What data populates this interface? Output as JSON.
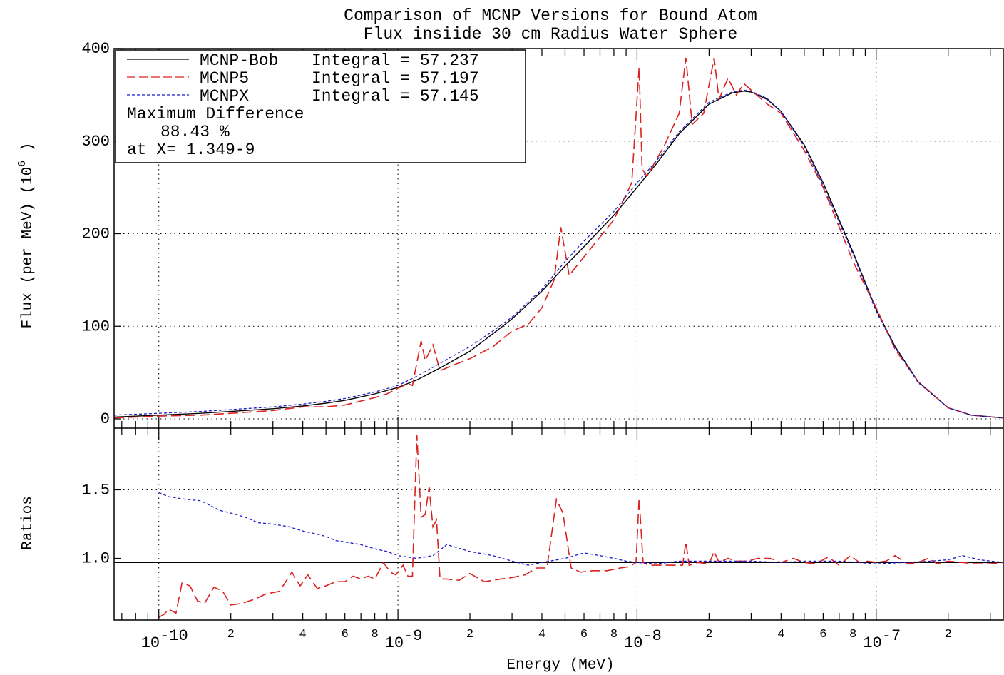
{
  "title_line1": "Comparison of MCNP Versions for Bound Atom",
  "title_line2": "Flux insiide 30 cm Radius Water Sphere",
  "xlabel": "Energy (MeV)",
  "ylabel_top": "Flux (per MeV) (10",
  "ylabel_top_exp": "6",
  "ylabel_top_close": " )",
  "ylabel_bottom": "Ratios",
  "x_decade_labels": [
    {
      "base": "10",
      "exp": "-10"
    },
    {
      "base": "10",
      "exp": "-9"
    },
    {
      "base": "10",
      "exp": "-8"
    },
    {
      "base": "10",
      "exp": "-7"
    }
  ],
  "x_minor_labels": [
    "2",
    "4",
    "6",
    "8"
  ],
  "y_top_ticks": [
    "0",
    "100",
    "200",
    "300",
    "400"
  ],
  "y_bottom_ticks": [
    "1.0",
    "1.5"
  ],
  "legend": {
    "rows": [
      {
        "name": "MCNP-Bob",
        "integral_label": "Integral = 57.237",
        "color": "#000000"
      },
      {
        "name": "MCNP5",
        "integral_label": "Integral = 57.197",
        "color": "#dd2020"
      },
      {
        "name": "MCNPX",
        "integral_label": "Integral = 57.145",
        "color": "#1a1acc"
      }
    ],
    "max_diff_label": "Maximum Difference",
    "max_diff_value": "88.43 %",
    "max_diff_at": "at X= 1.349-9"
  },
  "chart_data": [
    {
      "type": "line",
      "title": "Comparison of MCNP Versions for Bound Atom / Flux insiide 30 cm Radius Water Sphere",
      "xlabel": "Energy (MeV)",
      "ylabel": "Flux (per MeV) (10^6 )",
      "xscale": "log",
      "xlim": [
        6.5e-11,
        3.4e-07
      ],
      "ylim": [
        -10,
        400
      ],
      "grid": true,
      "legend_position": "top-left",
      "series": [
        {
          "name": "MCNP-Bob",
          "color": "#000000",
          "style": "solid",
          "integral": 57.237,
          "x": [
            6.5e-11,
            1e-10,
            1.5e-10,
            2e-10,
            3e-10,
            4e-10,
            5e-10,
            6e-10,
            8e-10,
            1e-09,
            1.2e-09,
            1.5e-09,
            2e-09,
            2.5e-09,
            3e-09,
            4e-09,
            5e-09,
            6e-09,
            8e-09,
            1e-08,
            1.2e-08,
            1.5e-08,
            2e-08,
            2.5e-08,
            2.8e-08,
            3e-08,
            3.5e-08,
            4e-08,
            5e-08,
            6e-08,
            8e-08,
            1e-07,
            1.2e-07,
            1.5e-07,
            2e-07,
            2.5e-07,
            3.4e-07
          ],
          "y": [
            2,
            4,
            6,
            8,
            11,
            14,
            17,
            20,
            27,
            34,
            42,
            55,
            73,
            92,
            108,
            138,
            165,
            186,
            220,
            250,
            275,
            308,
            340,
            352,
            354,
            353,
            345,
            332,
            296,
            255,
            180,
            118,
            78,
            40,
            12,
            4,
            1
          ]
        },
        {
          "name": "MCNP5",
          "color": "#dd2020",
          "style": "long-dash",
          "integral": 57.197,
          "x": [
            6.5e-11,
            1e-10,
            1.5e-10,
            2e-10,
            3e-10,
            4e-10,
            5e-10,
            6e-10,
            8e-10,
            9e-10,
            1e-09,
            1.1e-09,
            1.15e-09,
            1.25e-09,
            1.3e-09,
            1.4e-09,
            1.5e-09,
            1.7e-09,
            2e-09,
            2.5e-09,
            3e-09,
            3.5e-09,
            4e-09,
            4.5e-09,
            4.8e-09,
            5.2e-09,
            6e-09,
            8e-09,
            9.5e-09,
            1.02e-08,
            1.05e-08,
            1.1e-08,
            1.3e-08,
            1.5e-08,
            1.6e-08,
            1.7e-08,
            1.9e-08,
            2.1e-08,
            2.2e-08,
            2.4e-08,
            2.6e-08,
            2.8e-08,
            3e-08,
            3.5e-08,
            4e-08,
            5e-08,
            6e-08,
            8e-08,
            1e-07,
            1.2e-07,
            1.5e-07,
            2e-07,
            2.5e-07,
            3.4e-07
          ],
          "y": [
            1,
            3,
            4,
            6,
            9,
            13,
            13,
            15,
            23,
            27,
            33,
            38,
            36,
            84,
            63,
            80,
            52,
            58,
            65,
            78,
            95,
            102,
            120,
            150,
            207,
            155,
            175,
            215,
            255,
            380,
            270,
            262,
            295,
            330,
            390,
            318,
            330,
            390,
            345,
            368,
            350,
            362,
            355,
            340,
            330,
            290,
            250,
            170,
            120,
            75,
            40,
            12,
            4,
            1
          ]
        },
        {
          "name": "MCNPX",
          "color": "#1a1acc",
          "style": "short-dash",
          "integral": 57.145,
          "x": [
            6.5e-11,
            1e-10,
            1.5e-10,
            2e-10,
            3e-10,
            4e-10,
            5e-10,
            6e-10,
            8e-10,
            1e-09,
            1.2e-09,
            1.5e-09,
            2e-09,
            2.5e-09,
            3e-09,
            4e-09,
            5e-09,
            6e-09,
            8e-09,
            1e-08,
            1.2e-08,
            1.5e-08,
            2e-08,
            2.5e-08,
            2.8e-08,
            3e-08,
            3.5e-08,
            4e-08,
            5e-08,
            6e-08,
            8e-08,
            1e-07,
            1.2e-07,
            1.5e-07,
            2e-07,
            2.5e-07,
            3.4e-07
          ],
          "y": [
            4,
            6,
            8,
            10,
            13,
            16,
            19,
            22,
            29,
            36,
            46,
            60,
            78,
            95,
            110,
            140,
            170,
            192,
            224,
            255,
            278,
            310,
            342,
            353,
            355,
            354,
            346,
            332,
            294,
            252,
            178,
            116,
            77,
            39,
            12,
            4,
            1
          ]
        }
      ]
    },
    {
      "type": "line",
      "xlabel": "Energy (MeV)",
      "ylabel": "Ratios",
      "xscale": "log",
      "xlim": [
        6.5e-11,
        3.4e-07
      ],
      "ylim": [
        0.55,
        1.95
      ],
      "grid": true,
      "series": [
        {
          "name": "MCNP-Bob",
          "color": "#000000",
          "style": "solid",
          "x": [
            6.5e-11,
            3.4e-07
          ],
          "y": [
            0.97,
            0.97
          ]
        },
        {
          "name": "MCNP5",
          "color": "#dd2020",
          "style": "long-dash",
          "x": [
            1e-10,
            1.05e-10,
            1.1e-10,
            1.18e-10,
            1.25e-10,
            1.35e-10,
            1.45e-10,
            1.55e-10,
            1.7e-10,
            1.85e-10,
            2e-10,
            2.2e-10,
            2.5e-10,
            2.8e-10,
            3.2e-10,
            3.6e-10,
            3.9e-10,
            4.2e-10,
            4.6e-10,
            5e-10,
            5.5e-10,
            6e-10,
            6.5e-10,
            7e-10,
            7.5e-10,
            8e-10,
            8.7e-10,
            9.3e-10,
            9.8e-10,
            1.05e-09,
            1.1e-09,
            1.15e-09,
            1.2e-09,
            1.25e-09,
            1.3e-09,
            1.35e-09,
            1.4e-09,
            1.45e-09,
            1.5e-09,
            1.6e-09,
            1.8e-09,
            2e-09,
            2.3e-09,
            2.7e-09,
            3e-09,
            3.4e-09,
            3.8e-09,
            4.2e-09,
            4.6e-09,
            4.9e-09,
            5.3e-09,
            5.8e-09,
            6.5e-09,
            7.5e-09,
            8.5e-09,
            9.3e-09,
            9.9e-09,
            1.02e-08,
            1.06e-08,
            1.12e-08,
            1.25e-08,
            1.4e-08,
            1.55e-08,
            1.6e-08,
            1.65e-08,
            1.8e-08,
            2e-08,
            2.1e-08,
            2.2e-08,
            2.4e-08,
            2.6e-08,
            2.9e-08,
            3.2e-08,
            3.6e-08,
            4e-08,
            4.5e-08,
            5e-08,
            5.6e-08,
            6.3e-08,
            7e-08,
            7.8e-08,
            8.5e-08,
            9.2e-08,
            1e-07,
            1.1e-07,
            1.2e-07,
            1.35e-07,
            1.5e-07,
            1.65e-07,
            1.8e-07,
            2e-07,
            2.3e-07,
            2.6e-07,
            3e-07,
            3.4e-07
          ],
          "y": [
            0.57,
            0.59,
            0.63,
            0.6,
            0.82,
            0.8,
            0.69,
            0.67,
            0.79,
            0.76,
            0.66,
            0.67,
            0.7,
            0.74,
            0.76,
            0.9,
            0.8,
            0.88,
            0.78,
            0.8,
            0.83,
            0.83,
            0.87,
            0.85,
            0.87,
            0.85,
            0.97,
            0.9,
            0.88,
            0.95,
            0.87,
            0.87,
            1.9,
            1.3,
            1.32,
            1.52,
            1.23,
            1.28,
            0.85,
            0.85,
            0.84,
            0.89,
            0.83,
            0.85,
            0.86,
            0.88,
            0.93,
            0.93,
            1.43,
            1.33,
            0.93,
            0.9,
            0.91,
            0.91,
            0.93,
            0.94,
            0.97,
            1.44,
            0.97,
            0.95,
            0.95,
            0.95,
            0.95,
            1.12,
            0.95,
            0.97,
            0.96,
            1.05,
            0.97,
            1.0,
            0.98,
            0.98,
            1.0,
            1.0,
            0.97,
            1.0,
            0.97,
            0.96,
            1.01,
            0.95,
            1.02,
            0.97,
            0.98,
            0.97,
            0.98,
            1.02,
            0.96,
            0.97,
            1.0,
            0.96,
            0.98,
            0.97,
            0.96,
            0.96,
            0.97
          ]
        },
        {
          "name": "MCNPX",
          "color": "#1a1acc",
          "style": "short-dash",
          "x": [
            1e-10,
            1.1e-10,
            1.3e-10,
            1.5e-10,
            1.8e-10,
            2e-10,
            2.3e-10,
            2.6e-10,
            3e-10,
            3.5e-10,
            4e-10,
            4.5e-10,
            5e-10,
            5.5e-10,
            6e-10,
            7e-10,
            8e-10,
            9e-10,
            1e-09,
            1.2e-09,
            1.4e-09,
            1.6e-09,
            2e-09,
            2.5e-09,
            3e-09,
            3.5e-09,
            4e-09,
            5e-09,
            6e-09,
            7e-09,
            8e-09,
            9e-09,
            1e-08,
            1.2e-08,
            1.5e-08,
            2e-08,
            3e-08,
            4e-08,
            5e-08,
            7e-08,
            1e-07,
            1.3e-07,
            1.7e-07,
            2e-07,
            2.3e-07,
            2.7e-07,
            3.4e-07
          ],
          "y": [
            1.48,
            1.45,
            1.43,
            1.42,
            1.35,
            1.33,
            1.3,
            1.26,
            1.25,
            1.23,
            1.2,
            1.18,
            1.16,
            1.13,
            1.12,
            1.1,
            1.07,
            1.05,
            1.02,
            1.0,
            1.02,
            1.1,
            1.05,
            1.02,
            0.98,
            0.95,
            0.97,
            1.0,
            1.04,
            1.02,
            1.0,
            0.98,
            0.97,
            0.96,
            0.98,
            0.98,
            0.98,
            0.97,
            0.98,
            0.98,
            0.96,
            0.97,
            0.98,
            0.99,
            1.02,
            0.99,
            0.97
          ]
        }
      ]
    }
  ]
}
